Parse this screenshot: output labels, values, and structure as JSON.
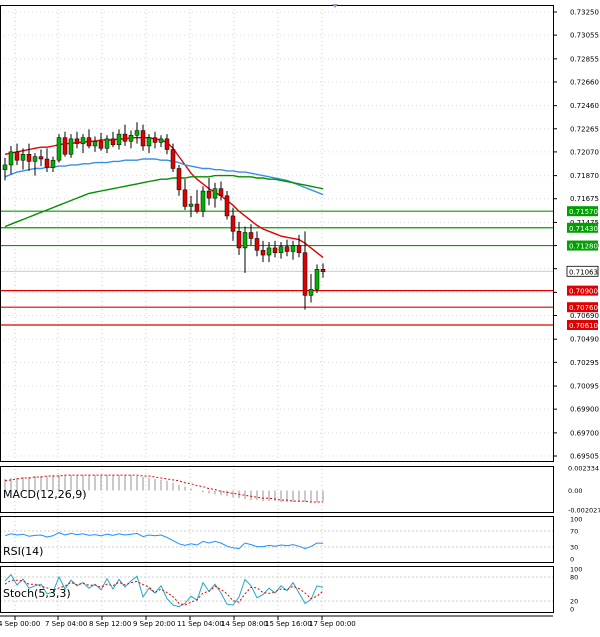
{
  "chart_data": {
    "type": "candlestick",
    "timeframe_note": "4H candles",
    "x_tick_labels": [
      "4 Sep 00:00",
      "7 Sep 04:00",
      "8 Sep 12:00",
      "9 Sep 20:00",
      "11 Sep 04:00",
      "14 Sep 08:00",
      "15 Sep 16:00",
      "17 Sep 00:00"
    ],
    "price_axis": {
      "ylim": [
        0.69505,
        0.7325
      ],
      "ticks": [
        "0.73250",
        "0.73055",
        "0.72855",
        "0.72660",
        "0.72460",
        "0.72265",
        "0.72070",
        "0.71870",
        "0.71675",
        "0.71475",
        "0.71280",
        "0.71085",
        "0.70885",
        "0.70690",
        "0.70490",
        "0.70295",
        "0.70095",
        "0.69900",
        "0.69700",
        "0.69505"
      ]
    },
    "levels": [
      {
        "label": "0.71570",
        "value": 0.7157,
        "color": "#00a000"
      },
      {
        "label": "0.71430",
        "value": 0.7143,
        "color": "#00a000"
      },
      {
        "label": "0.71280",
        "value": 0.7128,
        "color": "#00a000"
      },
      {
        "label": "0.70900",
        "value": 0.709,
        "color": "#e00000"
      },
      {
        "label": "0.70760",
        "value": 0.7076,
        "color": "#e00000"
      },
      {
        "label": "0.70610",
        "value": 0.7061,
        "color": "#e00000"
      }
    ],
    "current_price": {
      "label": "0.71063",
      "value": 0.71063
    },
    "candles": [
      {
        "o": 0.7192,
        "h": 0.7202,
        "l": 0.7183,
        "c": 0.7196
      },
      {
        "o": 0.7196,
        "h": 0.7212,
        "l": 0.7188,
        "c": 0.7207
      },
      {
        "o": 0.7207,
        "h": 0.7214,
        "l": 0.7196,
        "c": 0.72
      },
      {
        "o": 0.72,
        "h": 0.721,
        "l": 0.7192,
        "c": 0.7205
      },
      {
        "o": 0.7205,
        "h": 0.7214,
        "l": 0.7191,
        "c": 0.7199
      },
      {
        "o": 0.7199,
        "h": 0.7206,
        "l": 0.7187,
        "c": 0.7203
      },
      {
        "o": 0.7203,
        "h": 0.7209,
        "l": 0.7195,
        "c": 0.7201
      },
      {
        "o": 0.7201,
        "h": 0.721,
        "l": 0.719,
        "c": 0.7194
      },
      {
        "o": 0.7194,
        "h": 0.7203,
        "l": 0.719,
        "c": 0.72
      },
      {
        "o": 0.72,
        "h": 0.7222,
        "l": 0.7198,
        "c": 0.7219
      },
      {
        "o": 0.7219,
        "h": 0.7224,
        "l": 0.7203,
        "c": 0.7205
      },
      {
        "o": 0.7205,
        "h": 0.7222,
        "l": 0.7202,
        "c": 0.7218
      },
      {
        "o": 0.7218,
        "h": 0.7224,
        "l": 0.721,
        "c": 0.7214
      },
      {
        "o": 0.7214,
        "h": 0.7222,
        "l": 0.7206,
        "c": 0.7219
      },
      {
        "o": 0.7219,
        "h": 0.7226,
        "l": 0.721,
        "c": 0.7212
      },
      {
        "o": 0.7212,
        "h": 0.722,
        "l": 0.7207,
        "c": 0.7216
      },
      {
        "o": 0.7216,
        "h": 0.7223,
        "l": 0.7208,
        "c": 0.721
      },
      {
        "o": 0.721,
        "h": 0.7221,
        "l": 0.7206,
        "c": 0.7218
      },
      {
        "o": 0.7218,
        "h": 0.7224,
        "l": 0.7211,
        "c": 0.7213
      },
      {
        "o": 0.7213,
        "h": 0.7226,
        "l": 0.7209,
        "c": 0.7222
      },
      {
        "o": 0.7222,
        "h": 0.723,
        "l": 0.7212,
        "c": 0.7216
      },
      {
        "o": 0.7216,
        "h": 0.7225,
        "l": 0.721,
        "c": 0.7221
      },
      {
        "o": 0.7221,
        "h": 0.7232,
        "l": 0.7214,
        "c": 0.7225
      },
      {
        "o": 0.7225,
        "h": 0.723,
        "l": 0.7208,
        "c": 0.7212
      },
      {
        "o": 0.7212,
        "h": 0.7222,
        "l": 0.7206,
        "c": 0.7219
      },
      {
        "o": 0.7219,
        "h": 0.7224,
        "l": 0.721,
        "c": 0.7215
      },
      {
        "o": 0.7215,
        "h": 0.7221,
        "l": 0.7211,
        "c": 0.7218
      },
      {
        "o": 0.7218,
        "h": 0.7222,
        "l": 0.7205,
        "c": 0.7209
      },
      {
        "o": 0.7209,
        "h": 0.7214,
        "l": 0.719,
        "c": 0.7193
      },
      {
        "o": 0.7193,
        "h": 0.7196,
        "l": 0.717,
        "c": 0.7175
      },
      {
        "o": 0.7175,
        "h": 0.7184,
        "l": 0.7158,
        "c": 0.7161
      },
      {
        "o": 0.7161,
        "h": 0.717,
        "l": 0.7152,
        "c": 0.7163
      },
      {
        "o": 0.7163,
        "h": 0.7175,
        "l": 0.7155,
        "c": 0.7157
      },
      {
        "o": 0.7157,
        "h": 0.7178,
        "l": 0.7152,
        "c": 0.7174
      },
      {
        "o": 0.7174,
        "h": 0.7185,
        "l": 0.7162,
        "c": 0.7168
      },
      {
        "o": 0.7168,
        "h": 0.7181,
        "l": 0.716,
        "c": 0.7176
      },
      {
        "o": 0.7176,
        "h": 0.7182,
        "l": 0.7166,
        "c": 0.717
      },
      {
        "o": 0.717,
        "h": 0.7174,
        "l": 0.715,
        "c": 0.7153
      },
      {
        "o": 0.7153,
        "h": 0.716,
        "l": 0.7132,
        "c": 0.714
      },
      {
        "o": 0.714,
        "h": 0.7148,
        "l": 0.712,
        "c": 0.7126
      },
      {
        "o": 0.7126,
        "h": 0.7144,
        "l": 0.7105,
        "c": 0.7139
      },
      {
        "o": 0.7139,
        "h": 0.7146,
        "l": 0.7128,
        "c": 0.7134
      },
      {
        "o": 0.7134,
        "h": 0.714,
        "l": 0.7119,
        "c": 0.7124
      },
      {
        "o": 0.7124,
        "h": 0.7132,
        "l": 0.7114,
        "c": 0.712
      },
      {
        "o": 0.712,
        "h": 0.7131,
        "l": 0.7114,
        "c": 0.7126
      },
      {
        "o": 0.7126,
        "h": 0.7132,
        "l": 0.7118,
        "c": 0.7122
      },
      {
        "o": 0.7122,
        "h": 0.7131,
        "l": 0.7117,
        "c": 0.7127
      },
      {
        "o": 0.7127,
        "h": 0.7133,
        "l": 0.7119,
        "c": 0.7123
      },
      {
        "o": 0.7123,
        "h": 0.7132,
        "l": 0.7116,
        "c": 0.7128
      },
      {
        "o": 0.7128,
        "h": 0.7137,
        "l": 0.7118,
        "c": 0.7122
      },
      {
        "o": 0.7122,
        "h": 0.714,
        "l": 0.7074,
        "c": 0.7086
      },
      {
        "o": 0.7086,
        "h": 0.7104,
        "l": 0.708,
        "c": 0.7091
      },
      {
        "o": 0.7091,
        "h": 0.7112,
        "l": 0.7088,
        "c": 0.7108
      },
      {
        "o": 0.7108,
        "h": 0.7113,
        "l": 0.7101,
        "c": 0.7106
      }
    ],
    "moving_averages": [
      {
        "color": "#e00000",
        "values": [
          0.7205,
          0.7206,
          0.7207,
          0.7208,
          0.7209,
          0.721,
          0.7211,
          0.7211,
          0.7212,
          0.7213,
          0.7214,
          0.7214,
          0.7215,
          0.7215,
          0.7216,
          0.7216,
          0.7217,
          0.7217,
          0.7217,
          0.7218,
          0.7218,
          0.7219,
          0.7219,
          0.7219,
          0.7219,
          0.7218,
          0.7217,
          0.7215,
          0.721,
          0.7203,
          0.7196,
          0.7189,
          0.7184,
          0.718,
          0.7176,
          0.7173,
          0.717,
          0.7166,
          0.7162,
          0.7157,
          0.7153,
          0.7149,
          0.7145,
          0.7142,
          0.714,
          0.7138,
          0.7136,
          0.7135,
          0.7134,
          0.7133,
          0.713,
          0.7126,
          0.7122,
          0.7118
        ]
      },
      {
        "color": "#3a8ee8",
        "values": [
          0.7186,
          0.7188,
          0.719,
          0.7191,
          0.7192,
          0.7193,
          0.7193,
          0.7194,
          0.7194,
          0.7195,
          0.7195,
          0.7196,
          0.7196,
          0.7197,
          0.7197,
          0.7198,
          0.7198,
          0.7198,
          0.7199,
          0.7199,
          0.72,
          0.72,
          0.72,
          0.7201,
          0.7201,
          0.7201,
          0.72,
          0.72,
          0.7199,
          0.7198,
          0.7196,
          0.7195,
          0.7194,
          0.7193,
          0.7193,
          0.7192,
          0.7192,
          0.7191,
          0.7191,
          0.719,
          0.719,
          0.7189,
          0.7188,
          0.7187,
          0.7186,
          0.7185,
          0.7184,
          0.7183,
          0.7181,
          0.7179,
          0.7177,
          0.7175,
          0.7173,
          0.7171
        ]
      },
      {
        "color": "#009000",
        "values": [
          0.7144,
          0.7146,
          0.7148,
          0.715,
          0.7152,
          0.7154,
          0.7156,
          0.7158,
          0.716,
          0.7162,
          0.7164,
          0.7166,
          0.7168,
          0.717,
          0.7172,
          0.7173,
          0.7174,
          0.7175,
          0.7176,
          0.7177,
          0.7178,
          0.7179,
          0.718,
          0.7181,
          0.7182,
          0.7183,
          0.7184,
          0.7184,
          0.7185,
          0.7185,
          0.7185,
          0.7186,
          0.7186,
          0.7186,
          0.7186,
          0.7187,
          0.7187,
          0.7187,
          0.7187,
          0.7186,
          0.7186,
          0.7186,
          0.7185,
          0.7185,
          0.7184,
          0.7184,
          0.7183,
          0.7182,
          0.7181,
          0.718,
          0.7179,
          0.7178,
          0.7177,
          0.7176
        ]
      }
    ],
    "macd": {
      "label": "MACD(12,26,9)",
      "ylim": [
        -0.002027,
        0.002334
      ],
      "ticks": [
        "0.002334",
        "0.00",
        "-0.002027"
      ],
      "histogram": [
        0.0012,
        0.0013,
        0.0013,
        0.0014,
        0.0014,
        0.0015,
        0.0015,
        0.0015,
        0.0016,
        0.0016,
        0.0016,
        0.0016,
        0.0016,
        0.0016,
        0.0016,
        0.0016,
        0.0016,
        0.0016,
        0.0016,
        0.0016,
        0.0016,
        0.0016,
        0.0015,
        0.0014,
        0.0013,
        0.0012,
        0.0011,
        0.001,
        0.0008,
        0.0006,
        0.0004,
        0.0002,
        0.0,
        -0.0002,
        -0.0003,
        -0.0004,
        -0.0005,
        -0.0006,
        -0.0007,
        -0.0008,
        -0.0009,
        -0.001,
        -0.001,
        -0.0011,
        -0.0011,
        -0.0011,
        -0.0012,
        -0.0012,
        -0.0012,
        -0.0012,
        -0.0012,
        -0.0012,
        -0.0012,
        -0.0011
      ],
      "signal": [
        0.001,
        0.0011,
        0.0012,
        0.0013,
        0.0013,
        0.0014,
        0.0014,
        0.0015,
        0.0015,
        0.0015,
        0.0016,
        0.0016,
        0.0016,
        0.0016,
        0.0016,
        0.0016,
        0.0016,
        0.0016,
        0.0016,
        0.0016,
        0.0016,
        0.0016,
        0.0016,
        0.0015,
        0.0015,
        0.0014,
        0.0013,
        0.0012,
        0.0011,
        0.001,
        0.0008,
        0.0007,
        0.0005,
        0.0004,
        0.0002,
        0.0001,
        -0.0001,
        -0.0002,
        -0.0003,
        -0.0004,
        -0.0005,
        -0.0006,
        -0.0007,
        -0.0008,
        -0.0008,
        -0.0009,
        -0.001,
        -0.001,
        -0.0011,
        -0.0011,
        -0.0011,
        -0.0012,
        -0.0012,
        -0.0012
      ]
    },
    "rsi": {
      "label": "RSI(14)",
      "ylim": [
        0,
        100
      ],
      "ticks": [
        "100",
        "70",
        "30",
        "0"
      ],
      "values": [
        58,
        63,
        60,
        62,
        57,
        59,
        60,
        55,
        58,
        66,
        60,
        64,
        61,
        63,
        59,
        61,
        58,
        62,
        59,
        63,
        60,
        62,
        64,
        56,
        60,
        58,
        60,
        54,
        46,
        38,
        34,
        38,
        35,
        44,
        40,
        44,
        40,
        32,
        28,
        26,
        40,
        36,
        31,
        31,
        34,
        32,
        35,
        33,
        36,
        32,
        26,
        31,
        40,
        39
      ]
    },
    "stoch": {
      "label": "Stoch(5,3,3)",
      "ylim": [
        0,
        100
      ],
      "ticks": [
        "100",
        "80",
        "20",
        "0"
      ],
      "k": [
        70,
        86,
        60,
        75,
        52,
        58,
        62,
        38,
        42,
        80,
        50,
        72,
        58,
        66,
        52,
        62,
        48,
        76,
        50,
        74,
        55,
        70,
        82,
        30,
        52,
        40,
        58,
        26,
        10,
        6,
        14,
        32,
        22,
        66,
        44,
        62,
        40,
        12,
        10,
        30,
        74,
        58,
        28,
        36,
        52,
        40,
        58,
        46,
        66,
        40,
        14,
        24,
        58,
        54
      ],
      "d": [
        62,
        72,
        72,
        70,
        62,
        62,
        57,
        53,
        47,
        53,
        57,
        67,
        60,
        65,
        59,
        60,
        54,
        62,
        58,
        67,
        60,
        66,
        69,
        61,
        55,
        41,
        50,
        41,
        31,
        14,
        10,
        17,
        23,
        40,
        44,
        57,
        49,
        38,
        21,
        17,
        38,
        54,
        53,
        41,
        39,
        43,
        50,
        48,
        57,
        51,
        40,
        26,
        32,
        45
      ]
    }
  }
}
